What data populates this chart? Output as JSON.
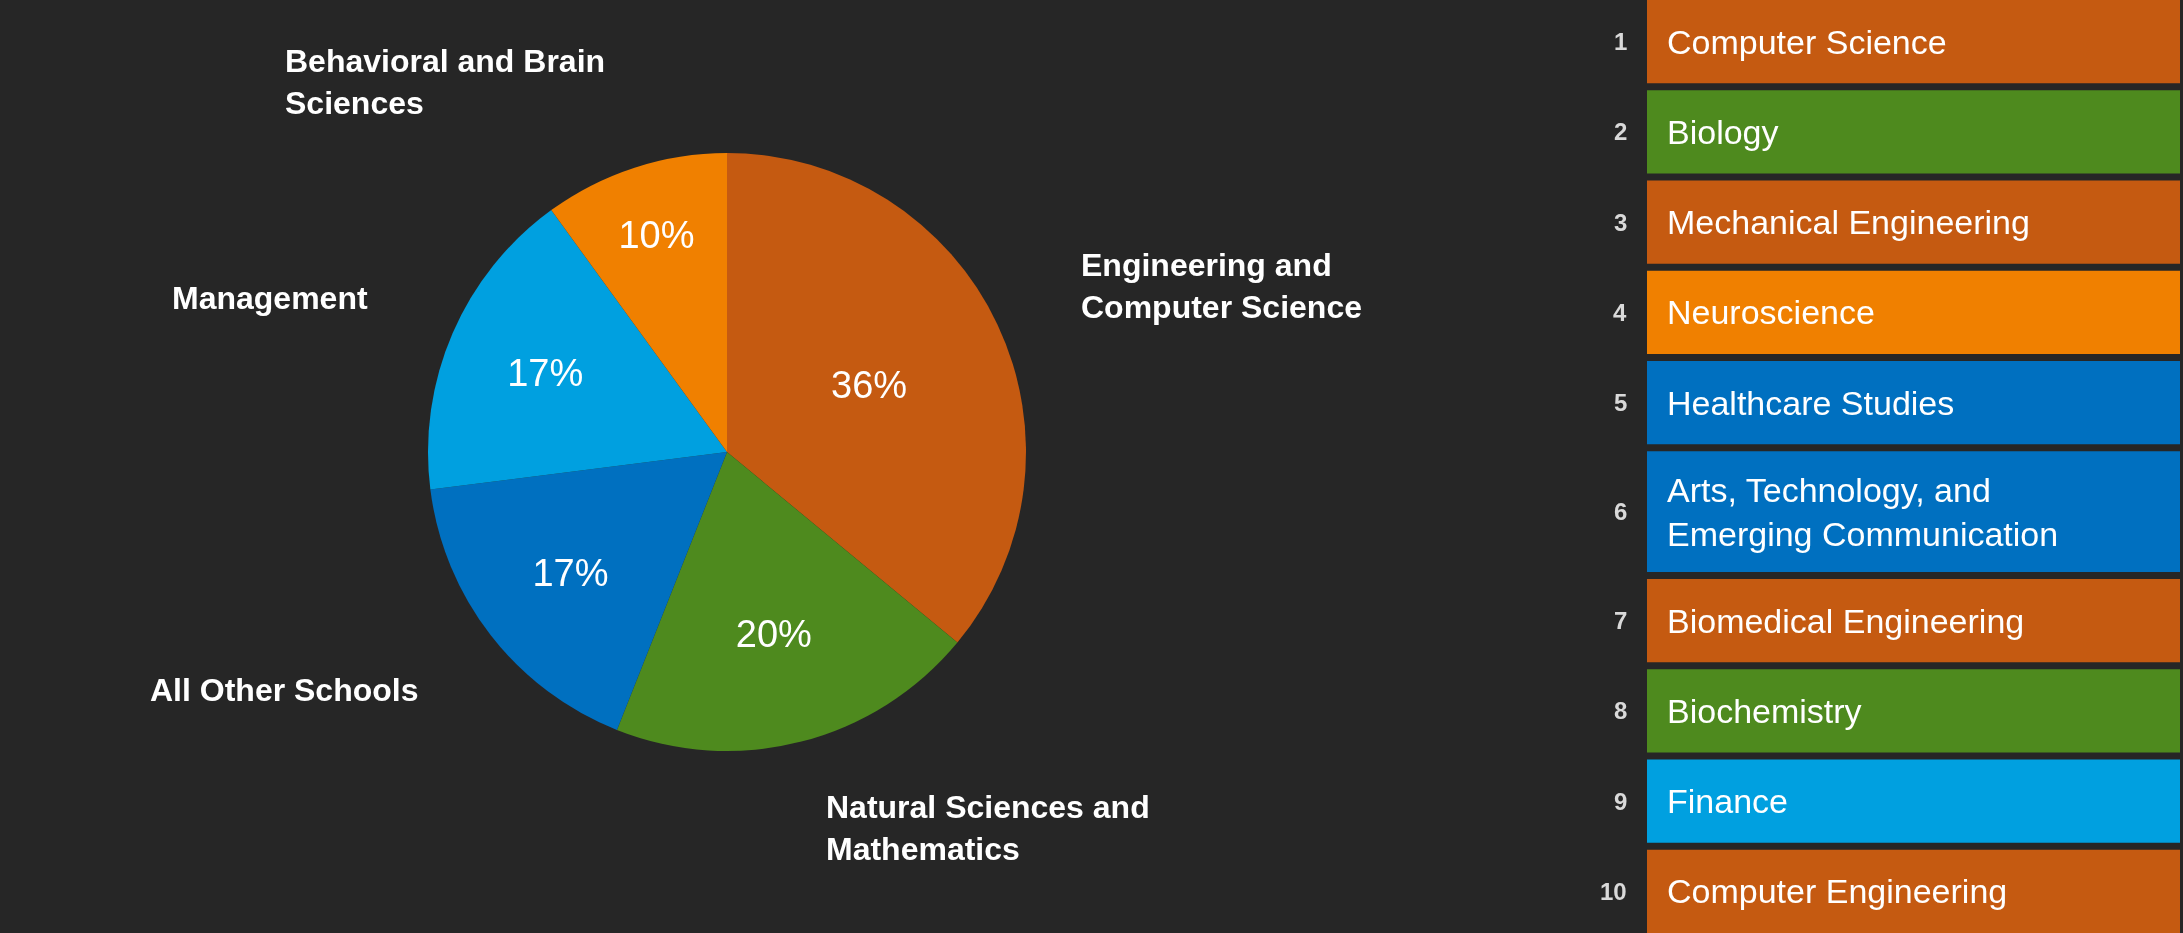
{
  "chart_data": [
    {
      "type": "pie",
      "categories": [
        "Engineering and Computer Science",
        "Natural Sciences and Mathematics",
        "All Other Schools",
        "Management",
        "Behavioral and Brain Sciences"
      ],
      "values": [
        36,
        20,
        17,
        17,
        10
      ],
      "value_labels": [
        "36%",
        "20%",
        "17%",
        "17%",
        "10%"
      ],
      "colors": [
        "#c55a11",
        "#4e8a1e",
        "#0070c0",
        "#00a0e0",
        "#f08000"
      ]
    },
    {
      "type": "other",
      "categories": [
        "Computer Science",
        "Biology",
        "Mechanical Engineering",
        "Neuroscience",
        "Healthcare Studies",
        "Arts, Technology, and Emerging Communication",
        "Biomedical Engineering",
        "Biochemistry",
        "Finance",
        "Computer Engineering"
      ],
      "value_labels": [
        "1",
        "2",
        "3",
        "4",
        "5",
        "6",
        "7",
        "8",
        "9",
        "10"
      ],
      "colors": [
        "#c55a11",
        "#4e8a1e",
        "#c55a11",
        "#f08000",
        "#0070c0",
        "#0070c0",
        "#c55a11",
        "#4e8a1e",
        "#00a0e0",
        "#c55a11"
      ]
    }
  ]
}
